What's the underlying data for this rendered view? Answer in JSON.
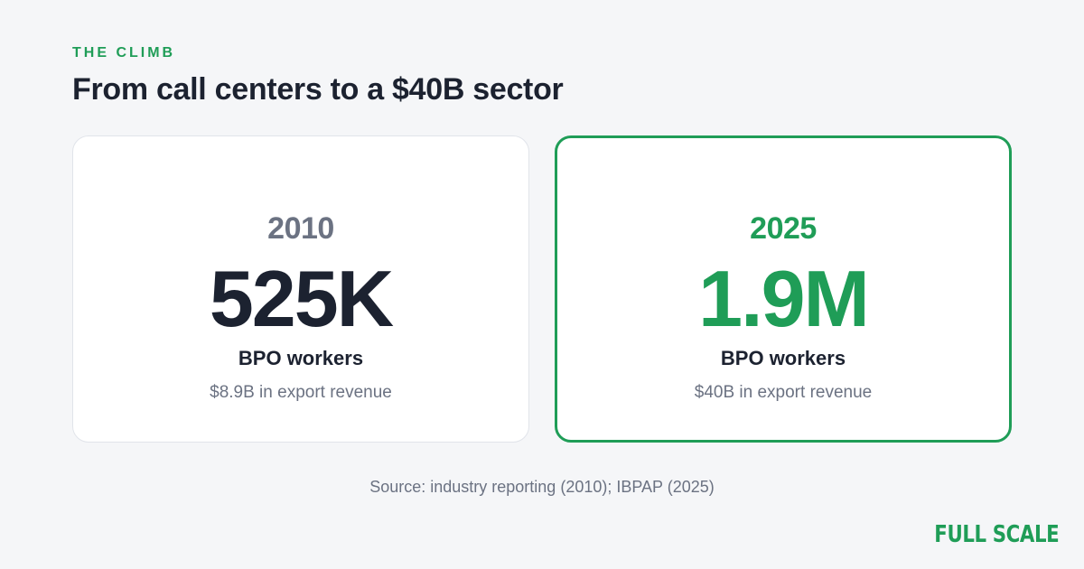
{
  "header": {
    "eyebrow": "THE CLIMB",
    "title": "From call centers to a $40B sector"
  },
  "cards": [
    {
      "year": "2010",
      "value": "525K",
      "label": "BPO workers",
      "revenue": "$8.9B in export revenue"
    },
    {
      "year": "2025",
      "value": "1.9M",
      "label": "BPO workers",
      "revenue": "$40B in export revenue",
      "highlighted": true
    }
  ],
  "footer": {
    "source": "Source: industry reporting (2010); IBPAP (2025)",
    "brand": "FULL SCALE"
  },
  "colors": {
    "accent": "#1f9d57",
    "background": "#f5f6f8",
    "text_dark": "#1c2230",
    "text_muted": "#6b7282"
  }
}
